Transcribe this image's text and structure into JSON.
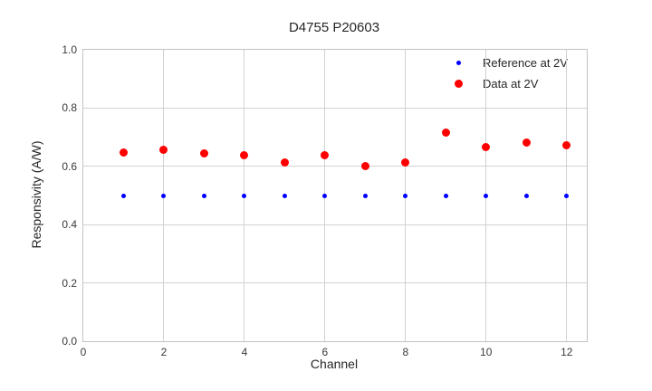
{
  "chart_data": {
    "type": "scatter",
    "title": "D4755 P20603",
    "xlabel": "Channel",
    "ylabel": "Responsivity (A/W)",
    "xlim": [
      0,
      12.5
    ],
    "ylim": [
      0.0,
      1.0
    ],
    "xticks": [
      "0",
      "2",
      "4",
      "6",
      "8",
      "10",
      "12"
    ],
    "yticks": [
      "0.0",
      "0.2",
      "0.4",
      "0.6",
      "0.8",
      "1.0"
    ],
    "grid": true,
    "legend_position": "upper right",
    "x": [
      1,
      2,
      3,
      4,
      5,
      6,
      7,
      8,
      9,
      10,
      11,
      12
    ],
    "series": [
      {
        "name": "Reference at 2V",
        "color": "#0000ff",
        "marker_size": 5,
        "values": [
          0.5,
          0.5,
          0.5,
          0.5,
          0.5,
          0.5,
          0.5,
          0.5,
          0.5,
          0.5,
          0.5,
          0.5
        ]
      },
      {
        "name": "Data at 2V",
        "color": "#ff0000",
        "marker_size": 9,
        "values": [
          0.648,
          0.656,
          0.645,
          0.637,
          0.614,
          0.638,
          0.602,
          0.612,
          0.717,
          0.666,
          0.683,
          0.673
        ]
      }
    ]
  },
  "colors": {
    "grid": "#d2d2d2",
    "spine": "#c3c3c3",
    "text": "#262626",
    "background": "#ffffff"
  }
}
